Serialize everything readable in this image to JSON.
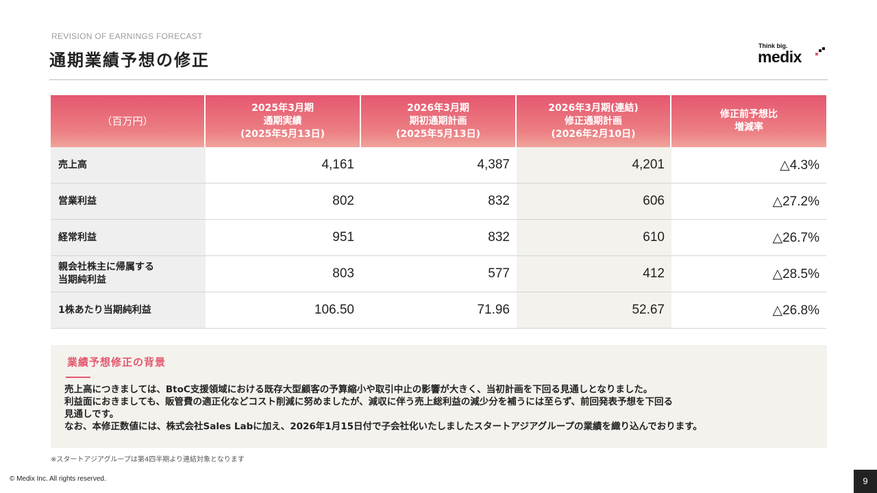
{
  "header": {
    "eyebrow": "REVISION OF EARNINGS FORECAST",
    "title": "通期業績予想の修正"
  },
  "logo": {
    "tagline": "Think big.",
    "wordmark": "medix"
  },
  "table": {
    "unit_label": "（百万円）",
    "columns": [
      {
        "lines": [
          "2025年3月期",
          "通期実績",
          "(2025年5月13日)"
        ]
      },
      {
        "lines": [
          "2026年3月期",
          "期初通期計画",
          "(2025年5月13日)"
        ]
      },
      {
        "lines": [
          "2026年3月期(連結)",
          "修正通期計画",
          "(2026年2月10日)"
        ]
      },
      {
        "lines": [
          "修正前予想比",
          "増減率"
        ]
      }
    ],
    "rows": [
      {
        "label_lines": [
          "売上高"
        ],
        "values": [
          "4,161",
          "4,387",
          "4,201",
          "△4.3%"
        ]
      },
      {
        "label_lines": [
          "営業利益"
        ],
        "values": [
          "802",
          "832",
          "606",
          "△27.2%"
        ]
      },
      {
        "label_lines": [
          "経常利益"
        ],
        "values": [
          "951",
          "832",
          "610",
          "△26.7%"
        ]
      },
      {
        "label_lines": [
          "親会社株主に帰属する",
          "当期純利益"
        ],
        "values": [
          "803",
          "577",
          "412",
          "△28.5%"
        ]
      },
      {
        "label_lines": [
          "1株あたり当期純利益"
        ],
        "values": [
          "106.50",
          "71.96",
          "52.67",
          "△26.8%"
        ]
      }
    ]
  },
  "background": {
    "heading": "業績予想修正の背景",
    "lines": [
      "売上高につきましては、BtoC支援領域における既存大型顧客の予算縮小や取引中止の影響が大きく、当初計画を下回る見通しとなりました。",
      "利益面におきましても、販管費の適正化などコスト削減に努めましたが、減収に伴う売上総利益の減少分を補うには至らず、前回発表予想を下回る",
      "見通しです。",
      "なお、本修正数値には、株式会社Sales Labに加え、2026年1月15日付で子会社化いたしましたスタートアジアグループの業績を織り込んでおります。"
    ]
  },
  "footnote": "※スタートアジアグループは第4四半期より連結対象となります",
  "footer": {
    "copyright": "© Medix Inc. All rights reserved.",
    "page_number": "9"
  },
  "colors": {
    "accent": "#e2586d",
    "header_gradient_top": "#e5576f",
    "header_gradient_bottom": "#f0a49c",
    "box_background": "#f4f2ed"
  }
}
